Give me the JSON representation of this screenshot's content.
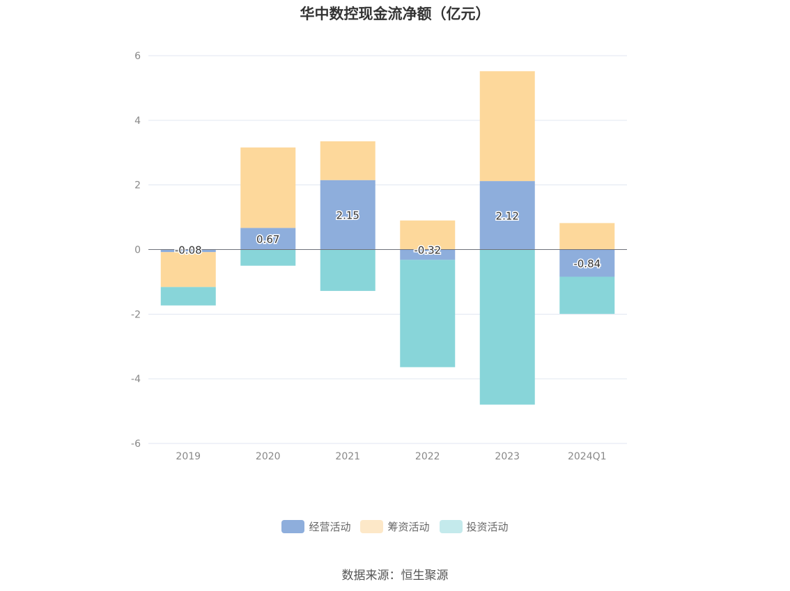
{
  "chart_data": {
    "type": "bar",
    "stacked": true,
    "title": "华中数控现金流净额（亿元）",
    "categories": [
      "2019",
      "2020",
      "2021",
      "2022",
      "2023",
      "2024Q1"
    ],
    "series": [
      {
        "name": "经营活动",
        "color": "#8eaedc",
        "values": [
          -0.08,
          0.67,
          2.15,
          -0.32,
          2.12,
          -0.84
        ],
        "labels": [
          "-0.08",
          "0.67",
          "2.15",
          "-0.32",
          "2.12",
          "-0.84"
        ]
      },
      {
        "name": "筹资活动",
        "color": "#fdd89b",
        "values": [
          -1.08,
          2.49,
          1.2,
          0.9,
          3.4,
          0.82
        ]
      },
      {
        "name": "投资活动",
        "color": "#88d5d9",
        "values": [
          -0.57,
          -0.5,
          -1.28,
          -3.32,
          -4.8,
          -1.15
        ]
      }
    ],
    "yticks": [
      6,
      4,
      2,
      0,
      -2,
      -4,
      -6
    ],
    "ylim": [
      -6,
      6
    ],
    "grid": true,
    "legend_position": "bottom"
  },
  "legend_swatch_colors": [
    "#8eaedc",
    "#fde8c8",
    "#c4eaec"
  ],
  "source": "数据来源：恒生聚源"
}
